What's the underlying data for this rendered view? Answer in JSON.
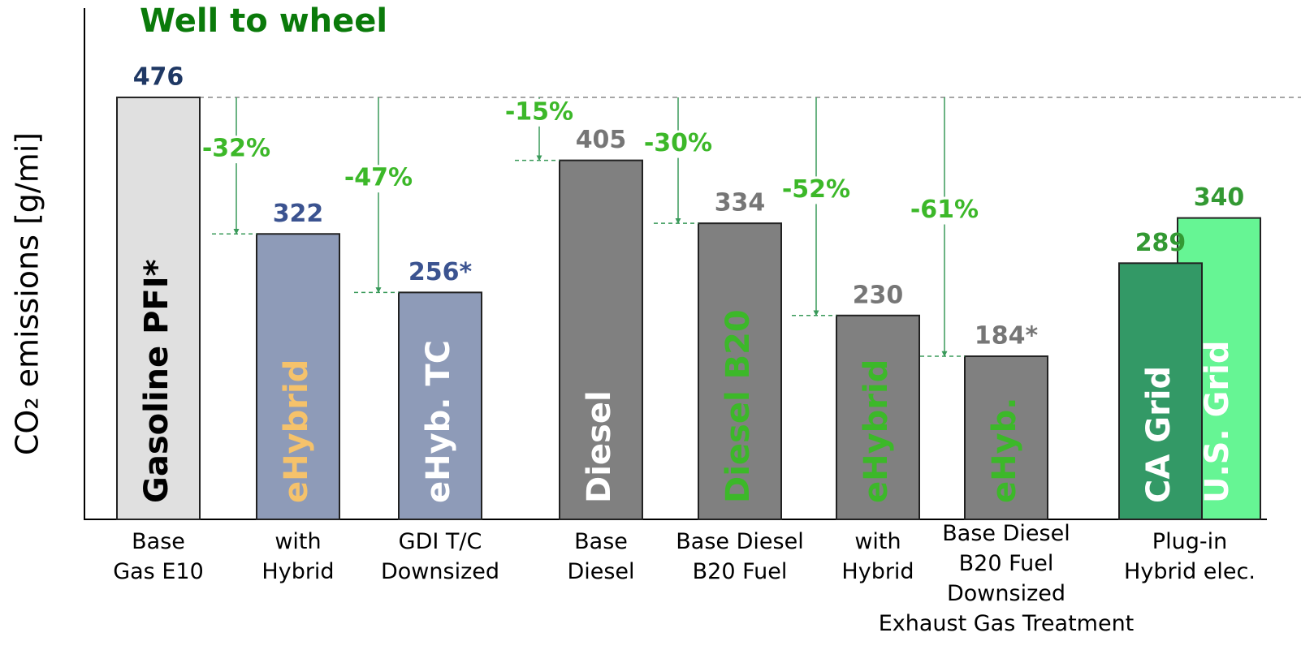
{
  "chart_data": {
    "type": "bar",
    "title": "Well to wheel",
    "y_label": "CO₂ emissions [g/mi]",
    "ylim": [
      0,
      520
    ],
    "groups": [
      {
        "category": "Base\nGas E10",
        "bars": [
          {
            "label": "Gasoline PFI*",
            "value": 476,
            "color": "#e0e0e0",
            "label_color": "#000000",
            "value_color": "#1f3864"
          }
        ]
      },
      {
        "category": "with\nHybrid",
        "bars": [
          {
            "label": "eHybrid",
            "value": 322,
            "change": "-32%",
            "color": "#8e9bb8",
            "label_color": "#f5c26b",
            "value_color": "#3b5390"
          }
        ]
      },
      {
        "category": "GDI T/C\nDownsized",
        "bars": [
          {
            "label": "eHyb. TC",
            "value": 256,
            "value_label": "256*",
            "change": "-47%",
            "color": "#8e9bb8",
            "label_color": "#ffffff",
            "value_color": "#3b5390"
          }
        ]
      },
      {
        "category": "Base\nDiesel",
        "bars": [
          {
            "label": "Diesel",
            "value": 405,
            "change": "-15%",
            "color": "#808080",
            "label_color": "#ffffff",
            "value_color": "#767676"
          }
        ]
      },
      {
        "category": "Base Diesel\nB20 Fuel",
        "bars": [
          {
            "label": "Diesel B20",
            "value": 334,
            "change": "-30%",
            "color": "#808080",
            "label_color": "#3cb829",
            "value_color": "#767676"
          }
        ]
      },
      {
        "category": "with\nHybrid",
        "bars": [
          {
            "label": "eHybrid",
            "value": 230,
            "change": "-52%",
            "color": "#808080",
            "label_color": "#3cb829",
            "value_color": "#767676"
          }
        ]
      },
      {
        "category": "Base Diesel\nB20 Fuel\nDownsized\nExhaust Gas Treatment",
        "bars": [
          {
            "label": "eHyb.",
            "value": 184,
            "value_label": "184*",
            "change": "-61%",
            "color": "#808080",
            "label_color": "#3cb829",
            "value_color": "#767676"
          }
        ]
      },
      {
        "category": "Plug-in\nHybrid elec.",
        "bars": [
          {
            "label": "CA Grid",
            "value": 289,
            "color": "#339966",
            "label_color": "#ffffff",
            "value_color": "#339933"
          },
          {
            "label": "U.S. Grid",
            "value": 340,
            "color": "#66f594",
            "label_color": "#ffffff",
            "value_color": "#339933"
          }
        ]
      }
    ]
  }
}
